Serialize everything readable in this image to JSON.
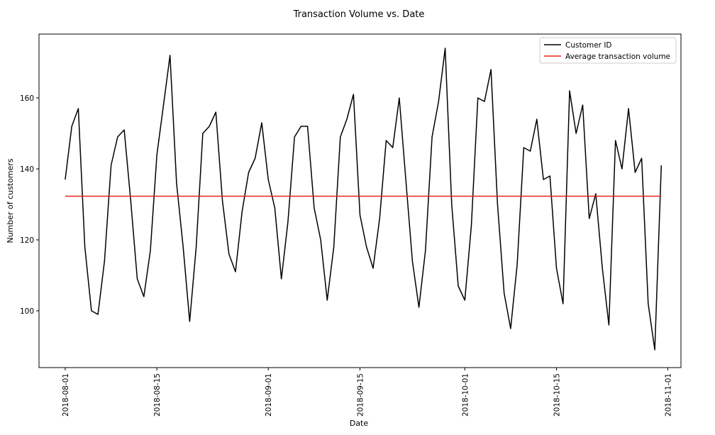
{
  "chart_data": {
    "type": "line",
    "title": "Transaction Volume vs. Date",
    "xlabel": "Date",
    "ylabel": "Number of customers",
    "x_start": "2018-08-01",
    "x_step_days": 1,
    "xlim": [
      "2018-07-28",
      "2018-11-03"
    ],
    "ylim": [
      84,
      178
    ],
    "x_ticks": [
      "2018-08-01",
      "2018-08-15",
      "2018-09-01",
      "2018-09-15",
      "2018-10-01",
      "2018-10-15",
      "2018-11-01"
    ],
    "y_ticks": [
      100,
      120,
      140,
      160
    ],
    "grid": false,
    "legend_position": "top-right",
    "series": [
      {
        "name": "Customer ID",
        "color": "#000000",
        "values": [
          137,
          152,
          157,
          118,
          100,
          99,
          114,
          141,
          149,
          151,
          131,
          109,
          104,
          117,
          144,
          158,
          172,
          136,
          118,
          97,
          118,
          150,
          152,
          156,
          131,
          116,
          111,
          128,
          139,
          143,
          153,
          137,
          129,
          109,
          125,
          149,
          152,
          152,
          129,
          120,
          103,
          118,
          149,
          154,
          161,
          127,
          118,
          112,
          126,
          148,
          146,
          160,
          137,
          114,
          101,
          117,
          149,
          159,
          174,
          130,
          107,
          103,
          124,
          160,
          159,
          168,
          130,
          105,
          95,
          113,
          146,
          145,
          154,
          137,
          138,
          112,
          102,
          162,
          150,
          158,
          126,
          133,
          112,
          96,
          148,
          140,
          157,
          139,
          143,
          102,
          89,
          141
        ]
      },
      {
        "name": "Average transaction volume",
        "color": "#e8231a",
        "values": [
          132.3,
          132.3
        ],
        "x": [
          "2018-08-01",
          "2018-10-31"
        ]
      }
    ]
  }
}
